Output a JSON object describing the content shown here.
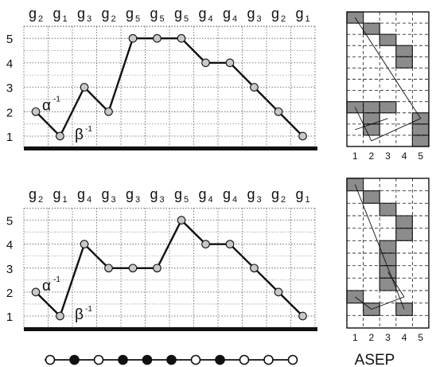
{
  "top": {
    "gen_labels": [
      "g",
      "g",
      "g",
      "g",
      "g",
      "g",
      "g",
      "g",
      "g",
      "g",
      "g",
      "g"
    ],
    "gen_indices": [
      "2",
      "1",
      "3",
      "2",
      "5",
      "5",
      "5",
      "4",
      "4",
      "3",
      "2",
      "1"
    ],
    "y_ticks": [
      "1",
      "2",
      "3",
      "4",
      "5"
    ],
    "heights": [
      2,
      1,
      3,
      2,
      5,
      5,
      5,
      4,
      4,
      3,
      2,
      1
    ],
    "alpha_label": "α",
    "alpha_sup": "-1",
    "beta_label": "β",
    "beta_sup": "-1",
    "grid": {
      "filled": [
        [
          0,
          0
        ],
        [
          1,
          1
        ],
        [
          2,
          2
        ],
        [
          3,
          3
        ],
        [
          3,
          4
        ],
        [
          0,
          8
        ],
        [
          1,
          8
        ],
        [
          2,
          8
        ],
        [
          1,
          9
        ],
        [
          1,
          10
        ],
        [
          4,
          9
        ],
        [
          4,
          10
        ],
        [
          4,
          11
        ]
      ],
      "arrows": [
        [
          0,
          0,
          4,
          9
        ],
        [
          1,
          11,
          0,
          8
        ],
        [
          2,
          9,
          0,
          10
        ],
        [
          4,
          9,
          1,
          11
        ]
      ]
    },
    "x_ticks": [
      "1",
      "2",
      "3",
      "4",
      "5"
    ]
  },
  "bottom": {
    "gen_labels": [
      "g",
      "g",
      "g",
      "g",
      "g",
      "g",
      "g",
      "g",
      "g",
      "g",
      "g",
      "g"
    ],
    "gen_indices": [
      "2",
      "1",
      "4",
      "3",
      "3",
      "3",
      "5",
      "4",
      "4",
      "3",
      "2",
      "1"
    ],
    "y_ticks": [
      "1",
      "2",
      "3",
      "4",
      "5"
    ],
    "heights": [
      2,
      1,
      4,
      3,
      3,
      3,
      5,
      4,
      4,
      3,
      2,
      1
    ],
    "alpha_label": "α",
    "alpha_sup": "-1",
    "beta_label": "β",
    "beta_sup": "-1",
    "grid": {
      "filled": [
        [
          0,
          0
        ],
        [
          1,
          1
        ],
        [
          2,
          2
        ],
        [
          3,
          3
        ],
        [
          3,
          4
        ],
        [
          2,
          5
        ],
        [
          2,
          6
        ],
        [
          2,
          7
        ],
        [
          2,
          8
        ],
        [
          0,
          9
        ],
        [
          1,
          10
        ],
        [
          3,
          10
        ]
      ],
      "arrows": [
        [
          0,
          0,
          3,
          10
        ],
        [
          1,
          10,
          0,
          9
        ],
        [
          2,
          7,
          3,
          9
        ],
        [
          3,
          9,
          1,
          10
        ]
      ]
    },
    "x_ticks": [
      "1",
      "2",
      "3",
      "4",
      "5"
    ]
  },
  "chain": {
    "states": [
      "open",
      "filled",
      "open",
      "filled",
      "filled",
      "filled",
      "open",
      "filled",
      "open",
      "open",
      "open"
    ]
  },
  "caption": "ASEP"
}
